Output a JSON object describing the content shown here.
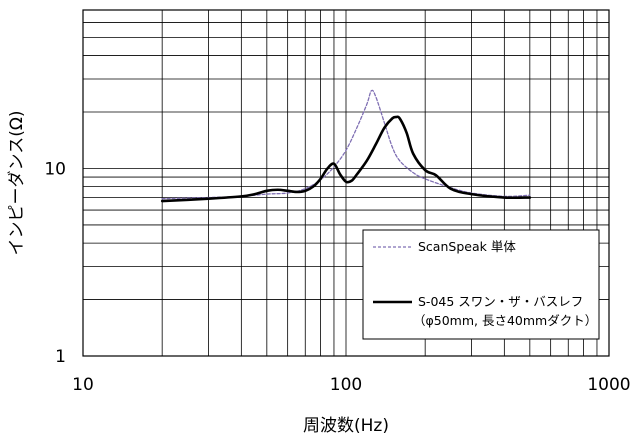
{
  "chart_data": {
    "type": "line",
    "title": "",
    "xlabel": "周波数(Hz)",
    "ylabel": "インピーダンス(Ω)",
    "x_scale": "log",
    "y_scale": "log",
    "xlim": [
      10,
      1000
    ],
    "ylim": [
      1,
      70
    ],
    "x_tick_labels": [
      "10",
      "100",
      "1000"
    ],
    "y_tick_labels": [
      "1",
      "10"
    ],
    "grid": true,
    "legend_position": "bottom-right",
    "series": [
      {
        "name": "ScanSpeak 単体",
        "style": "dashed",
        "color": "#7f6fb3",
        "x": [
          20,
          30,
          40,
          50,
          60,
          70,
          80,
          90,
          100,
          110,
          120,
          125,
          130,
          140,
          150,
          160,
          180,
          200,
          250,
          300,
          400,
          500
        ],
        "y": [
          6.9,
          7.0,
          7.1,
          7.3,
          7.4,
          7.8,
          8.7,
          10.2,
          12.5,
          16.5,
          22.0,
          26.0,
          24.0,
          17.5,
          13.0,
          11.0,
          9.5,
          8.8,
          7.9,
          7.4,
          7.1,
          7.2
        ]
      },
      {
        "name": "S-045 スワン・ザ・バスレフ\n（φ50mm, 長さ40mmダクト）",
        "style": "solid",
        "color": "#000000",
        "x": [
          20,
          30,
          40,
          45,
          50,
          55,
          60,
          65,
          70,
          75,
          80,
          85,
          90,
          95,
          100,
          105,
          110,
          120,
          130,
          140,
          150,
          155,
          160,
          170,
          180,
          200,
          220,
          250,
          300,
          400,
          500
        ],
        "y": [
          6.7,
          6.9,
          7.1,
          7.3,
          7.6,
          7.7,
          7.6,
          7.5,
          7.6,
          8.0,
          8.8,
          10.0,
          10.6,
          9.3,
          8.5,
          8.6,
          9.3,
          11.0,
          13.5,
          16.5,
          18.5,
          18.8,
          18.5,
          15.5,
          12.0,
          9.8,
          9.2,
          7.8,
          7.3,
          7.0,
          7.0
        ]
      }
    ]
  },
  "legend": {
    "entries": [
      "ScanSpeak 単体",
      "S-045 スワン・ザ・バスレフ",
      "（φ50mm, 長さ40mmダクト）"
    ]
  }
}
